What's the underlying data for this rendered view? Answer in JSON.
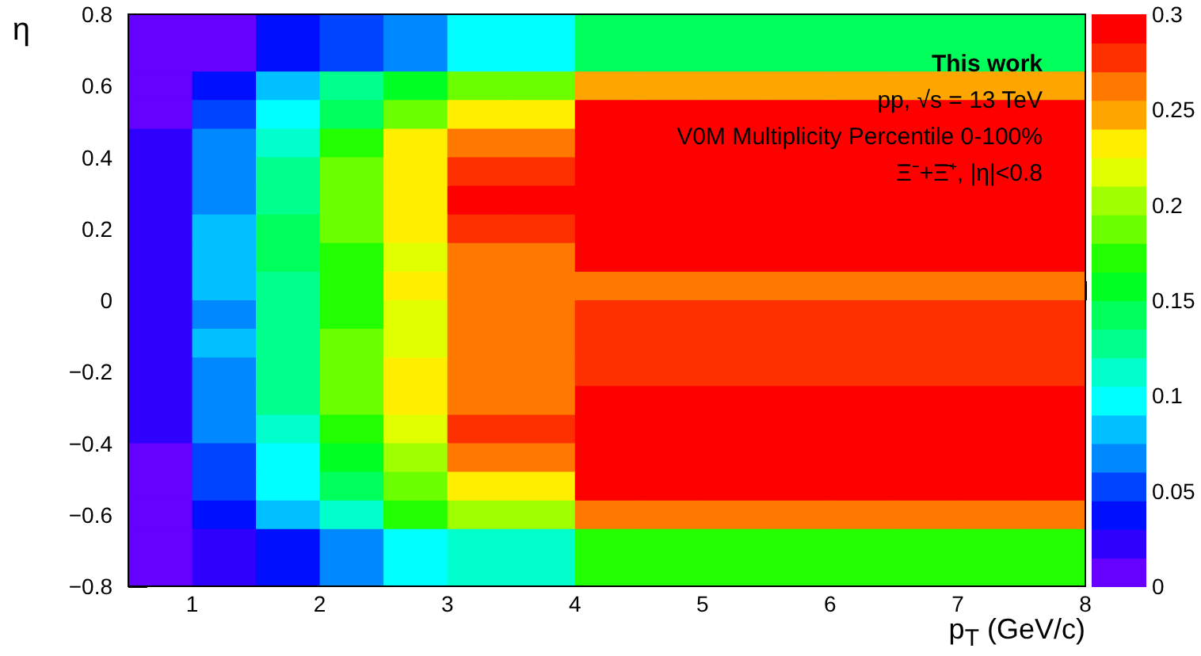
{
  "chart_data": {
    "type": "heatmap",
    "xlabel": "p$_{T}$ (GeV/c)",
    "ylabel": "η",
    "annotations": [
      "This work",
      "pp, √s = 13 TeV",
      "V0M Multiplicity Percentile 0-100%",
      "Ξ⁻+Ξ̄⁺, |η|<0.8"
    ],
    "xlim": [
      0.5,
      8
    ],
    "xticks": [
      1,
      2,
      3,
      4,
      5,
      6,
      7,
      8
    ],
    "ylim": [
      -0.8,
      0.8
    ],
    "yticks": [
      -0.8,
      -0.6,
      -0.4,
      -0.2,
      0,
      0.2,
      0.4,
      0.6,
      0.8
    ],
    "clim": [
      0,
      0.3
    ],
    "cticks": [
      0,
      0.05,
      0.1,
      0.15,
      0.2,
      0.25,
      0.3
    ],
    "cells": [
      [
        0.008,
        0.008,
        0.038,
        0.053,
        0.068,
        0.098,
        0.098,
        0.143,
        0.143,
        0.143,
        0.143,
        0.143,
        0.143,
        0.143,
        0.143
      ],
      [
        0.008,
        0.008,
        0.038,
        0.053,
        0.068,
        0.098,
        0.098,
        0.143,
        0.143,
        0.143,
        0.143,
        0.143,
        0.143,
        0.143,
        0.143
      ],
      [
        0.008,
        0.038,
        0.083,
        0.128,
        0.158,
        0.188,
        0.188,
        0.248,
        0.248,
        0.248,
        0.248,
        0.248,
        0.248,
        0.248,
        0.248
      ],
      [
        0.008,
        0.053,
        0.098,
        0.143,
        0.188,
        0.233,
        0.233,
        0.293,
        0.293,
        0.293,
        0.293,
        0.293,
        0.293,
        0.293,
        0.293
      ],
      [
        0.023,
        0.068,
        0.113,
        0.173,
        0.233,
        0.263,
        0.263,
        0.293,
        0.293,
        0.293,
        0.293,
        0.293,
        0.293,
        0.293,
        0.293
      ],
      [
        0.023,
        0.068,
        0.128,
        0.188,
        0.233,
        0.278,
        0.278,
        0.293,
        0.293,
        0.293,
        0.293,
        0.293,
        0.293,
        0.293,
        0.293
      ],
      [
        0.023,
        0.068,
        0.128,
        0.188,
        0.233,
        0.293,
        0.293,
        0.293,
        0.293,
        0.293,
        0.293,
        0.293,
        0.293,
        0.293,
        0.293
      ],
      [
        0.023,
        0.083,
        0.143,
        0.188,
        0.233,
        0.278,
        0.278,
        0.293,
        0.293,
        0.293,
        0.293,
        0.293,
        0.293,
        0.293,
        0.293
      ],
      [
        0.023,
        0.083,
        0.143,
        0.173,
        0.218,
        0.263,
        0.263,
        0.293,
        0.293,
        0.293,
        0.293,
        0.293,
        0.293,
        0.293,
        0.293
      ],
      [
        0.023,
        0.083,
        0.128,
        0.173,
        0.233,
        0.263,
        0.263,
        0.263,
        0.263,
        0.263,
        0.263,
        0.263,
        0.263,
        0.263,
        0.263
      ],
      [
        0.023,
        0.068,
        0.128,
        0.173,
        0.218,
        0.263,
        0.263,
        0.278,
        0.278,
        0.278,
        0.278,
        0.278,
        0.278,
        0.278,
        0.278
      ],
      [
        0.023,
        0.083,
        0.128,
        0.188,
        0.218,
        0.263,
        0.263,
        0.278,
        0.278,
        0.278,
        0.278,
        0.278,
        0.278,
        0.278,
        0.278
      ],
      [
        0.023,
        0.068,
        0.128,
        0.188,
        0.233,
        0.263,
        0.263,
        0.278,
        0.278,
        0.278,
        0.278,
        0.278,
        0.278,
        0.278,
        0.278
      ],
      [
        0.023,
        0.068,
        0.128,
        0.188,
        0.233,
        0.263,
        0.263,
        0.293,
        0.293,
        0.293,
        0.293,
        0.293,
        0.293,
        0.293,
        0.293
      ],
      [
        0.023,
        0.068,
        0.113,
        0.173,
        0.218,
        0.278,
        0.278,
        0.293,
        0.293,
        0.293,
        0.293,
        0.293,
        0.293,
        0.293,
        0.293
      ],
      [
        0.008,
        0.053,
        0.098,
        0.158,
        0.203,
        0.263,
        0.263,
        0.293,
        0.293,
        0.293,
        0.293,
        0.293,
        0.293,
        0.293,
        0.293
      ],
      [
        0.008,
        0.053,
        0.098,
        0.143,
        0.188,
        0.233,
        0.233,
        0.293,
        0.293,
        0.293,
        0.293,
        0.293,
        0.293,
        0.293,
        0.293
      ],
      [
        0.008,
        0.038,
        0.083,
        0.113,
        0.173,
        0.203,
        0.203,
        0.263,
        0.263,
        0.263,
        0.263,
        0.263,
        0.263,
        0.263,
        0.263
      ],
      [
        0.008,
        0.023,
        0.038,
        0.068,
        0.098,
        0.113,
        0.113,
        0.173,
        0.173,
        0.173,
        0.173,
        0.173,
        0.173,
        0.173,
        0.173
      ],
      [
        0.008,
        0.023,
        0.038,
        0.068,
        0.098,
        0.113,
        0.113,
        0.173,
        0.173,
        0.173,
        0.173,
        0.173,
        0.173,
        0.173,
        0.173
      ]
    ]
  }
}
